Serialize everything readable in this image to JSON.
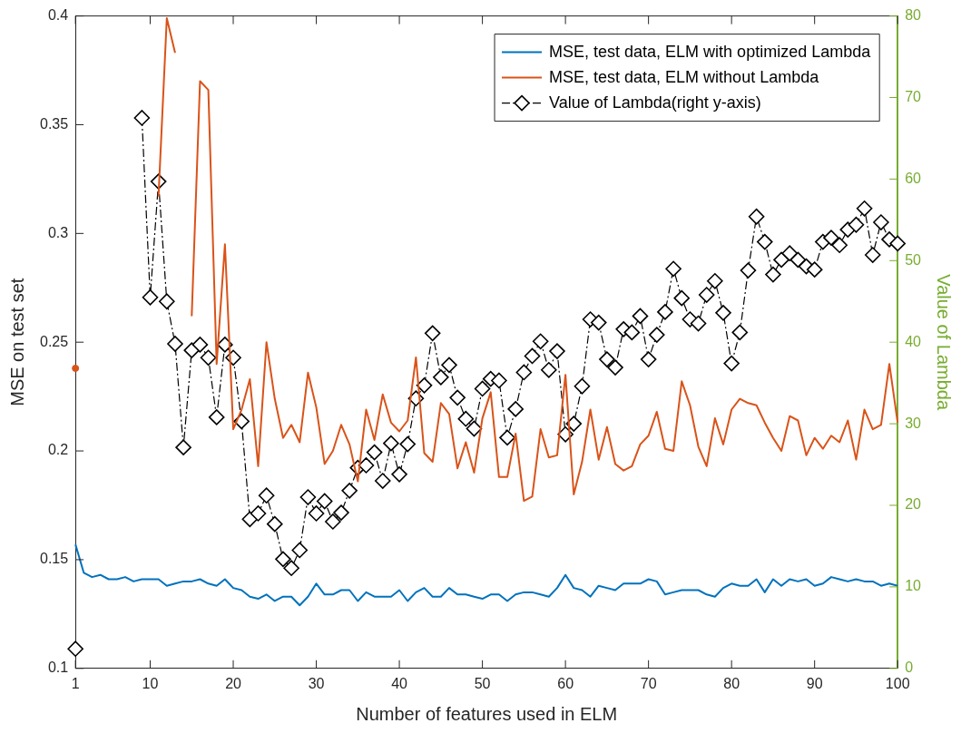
{
  "chart_data": {
    "type": "line",
    "xlabel": "Number of features used in ELM",
    "ylabel": "MSE on test set",
    "y2label": "Value of Lambda",
    "x": [
      1,
      2,
      3,
      4,
      5,
      6,
      7,
      8,
      9,
      10,
      11,
      12,
      13,
      14,
      15,
      16,
      17,
      18,
      19,
      20,
      21,
      22,
      23,
      24,
      25,
      26,
      27,
      28,
      29,
      30,
      31,
      32,
      33,
      34,
      35,
      36,
      37,
      38,
      39,
      40,
      41,
      42,
      43,
      44,
      45,
      46,
      47,
      48,
      49,
      50,
      51,
      52,
      53,
      54,
      55,
      56,
      57,
      58,
      59,
      60,
      61,
      62,
      63,
      64,
      65,
      66,
      67,
      68,
      69,
      70,
      71,
      72,
      73,
      74,
      75,
      76,
      77,
      78,
      79,
      80,
      81,
      82,
      83,
      84,
      85,
      86,
      87,
      88,
      89,
      90,
      91,
      92,
      93,
      94,
      95,
      96,
      97,
      98,
      99,
      100
    ],
    "series": [
      {
        "name": "MSE, test data, ELM with optimized Lambda",
        "color": "#0072bd",
        "marker": "none",
        "line_style": "solid",
        "values": [
          0.157,
          0.144,
          0.142,
          0.143,
          0.141,
          0.141,
          0.142,
          0.14,
          0.141,
          0.141,
          0.141,
          0.138,
          0.139,
          0.14,
          0.14,
          0.141,
          0.139,
          0.138,
          0.141,
          0.137,
          0.136,
          0.133,
          0.132,
          0.134,
          0.131,
          0.133,
          0.133,
          0.129,
          0.133,
          0.139,
          0.134,
          0.134,
          0.136,
          0.136,
          0.131,
          0.135,
          0.133,
          0.133,
          0.133,
          0.136,
          0.131,
          0.135,
          0.137,
          0.133,
          0.133,
          0.137,
          0.134,
          0.134,
          0.133,
          0.132,
          0.134,
          0.134,
          0.131,
          0.134,
          0.135,
          0.135,
          0.134,
          0.133,
          0.137,
          0.143,
          0.137,
          0.136,
          0.133,
          0.138,
          0.137,
          0.136,
          0.139,
          0.139,
          0.139,
          0.141,
          0.14,
          0.134,
          0.135,
          0.136,
          0.136,
          0.136,
          0.134,
          0.133,
          0.137,
          0.139,
          0.138,
          0.138,
          0.141,
          0.135,
          0.141,
          0.138,
          0.141,
          0.14,
          0.141,
          0.138,
          0.139,
          0.142,
          0.141,
          0.14,
          0.141,
          0.14,
          0.14,
          0.138,
          0.139,
          0.138
        ]
      },
      {
        "name": "MSE, test data, ELM without Lambda",
        "color": "#d95319",
        "marker": "none",
        "line_style": "solid",
        "values": [
          0.238,
          null,
          null,
          null,
          null,
          null,
          null,
          null,
          null,
          null,
          0.317,
          0.399,
          0.383,
          null,
          0.262,
          0.37,
          0.366,
          0.24,
          0.295,
          0.21,
          0.219,
          0.233,
          0.193,
          0.25,
          0.224,
          0.206,
          0.212,
          0.204,
          0.236,
          0.22,
          0.194,
          0.2,
          0.212,
          0.203,
          0.186,
          0.219,
          0.205,
          0.226,
          0.213,
          0.209,
          0.214,
          0.243,
          0.199,
          0.195,
          0.222,
          0.217,
          0.192,
          0.204,
          0.19,
          0.215,
          0.227,
          0.188,
          0.188,
          0.208,
          0.177,
          0.179,
          0.21,
          0.197,
          0.198,
          0.235,
          0.18,
          0.195,
          0.219,
          0.196,
          0.211,
          0.194,
          0.191,
          0.193,
          0.203,
          0.207,
          0.218,
          0.201,
          0.2,
          0.232,
          0.221,
          0.202,
          0.193,
          0.215,
          0.203,
          0.219,
          0.224,
          0.222,
          0.221,
          0.213,
          0.206,
          0.2,
          0.216,
          0.214,
          0.198,
          0.206,
          0.201,
          0.207,
          0.204,
          0.214,
          0.196,
          0.219,
          0.21,
          0.212,
          0.24,
          0.213
        ]
      },
      {
        "name": "Value of Lambda(right y-axis)",
        "color": "#000000",
        "marker": "diamond",
        "line_style": "dashed",
        "axis": "y2",
        "values": [
          2.4,
          null,
          null,
          null,
          null,
          null,
          null,
          null,
          67.5,
          45.5,
          59.7,
          45.0,
          39.8,
          27.1,
          39.0,
          39.7,
          38.1,
          30.8,
          39.7,
          38.1,
          30.3,
          18.3,
          19.0,
          21.2,
          17.7,
          13.4,
          12.3,
          14.5,
          21.0,
          19.0,
          20.5,
          18.0,
          19.1,
          21.8,
          24.6,
          24.9,
          26.5,
          23.0,
          27.6,
          23.8,
          27.5,
          33.1,
          34.7,
          41.1,
          35.7,
          37.2,
          33.2,
          30.6,
          29.4,
          34.3,
          35.5,
          35.3,
          28.3,
          31.8,
          36.3,
          38.3,
          40.1,
          36.6,
          38.9,
          28.7,
          30.0,
          34.6,
          42.8,
          42.4,
          37.9,
          36.9,
          41.6,
          41.2,
          43.2,
          37.9,
          40.9,
          43.7,
          49.0,
          45.4,
          42.8,
          42.3,
          45.8,
          47.5,
          43.6,
          37.4,
          41.2,
          48.8,
          55.4,
          52.3,
          48.3,
          50.1,
          50.9,
          50.1,
          49.3,
          48.9,
          52.3,
          52.8,
          51.9,
          53.8,
          54.4,
          56.4,
          50.7,
          54.7,
          52.6,
          52.1
        ]
      }
    ],
    "xlim": [
      1,
      100
    ],
    "xticks": [
      1,
      10,
      20,
      30,
      40,
      50,
      60,
      70,
      80,
      90,
      100
    ],
    "ylim": [
      0.1,
      0.4
    ],
    "yticks": [
      0.1,
      0.15,
      0.2,
      0.25,
      0.3,
      0.35,
      0.4
    ],
    "y2lim": [
      0,
      80
    ],
    "y2ticks": [
      0,
      10,
      20,
      30,
      40,
      50,
      60,
      70,
      80
    ],
    "grid": false,
    "legend": "top right"
  }
}
